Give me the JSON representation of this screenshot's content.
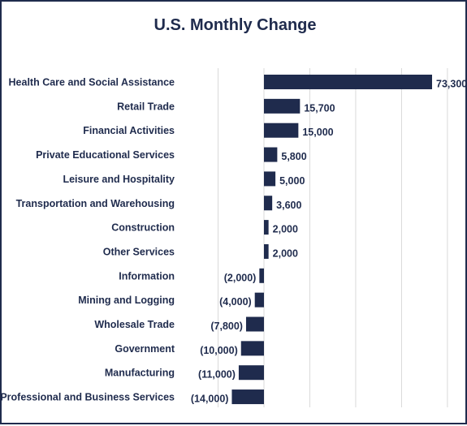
{
  "chart_data": {
    "type": "bar",
    "orientation": "horizontal",
    "title": "U.S. Monthly Change",
    "xlabel": "",
    "ylabel": "",
    "grid": true,
    "legend": "none",
    "bar_color": "#1f2b4d",
    "categories": [
      "Health Care and Social Assistance",
      "Retail Trade",
      "Financial Activities",
      "Private Educational Services",
      "Leisure and Hospitality",
      "Transportation and Warehousing",
      "Construction",
      "Other Services",
      "Information",
      "Mining and Logging",
      "Wholesale Trade",
      "Government",
      "Manufacturing",
      "Professional and Business Services"
    ],
    "values": [
      73300,
      15700,
      15000,
      5800,
      5000,
      3600,
      2000,
      2000,
      -2000,
      -4000,
      -7800,
      -10000,
      -11000,
      -14000
    ],
    "value_labels": [
      "73,300",
      "15,700",
      "15,000",
      "5,800",
      "5,000",
      "3,600",
      "2,000",
      "2,000",
      "(2,000)",
      "(4,000)",
      "(7,800)",
      "(10,000)",
      "(11,000)",
      "(14,000)"
    ],
    "xlim": [
      -20000,
      80000
    ]
  }
}
